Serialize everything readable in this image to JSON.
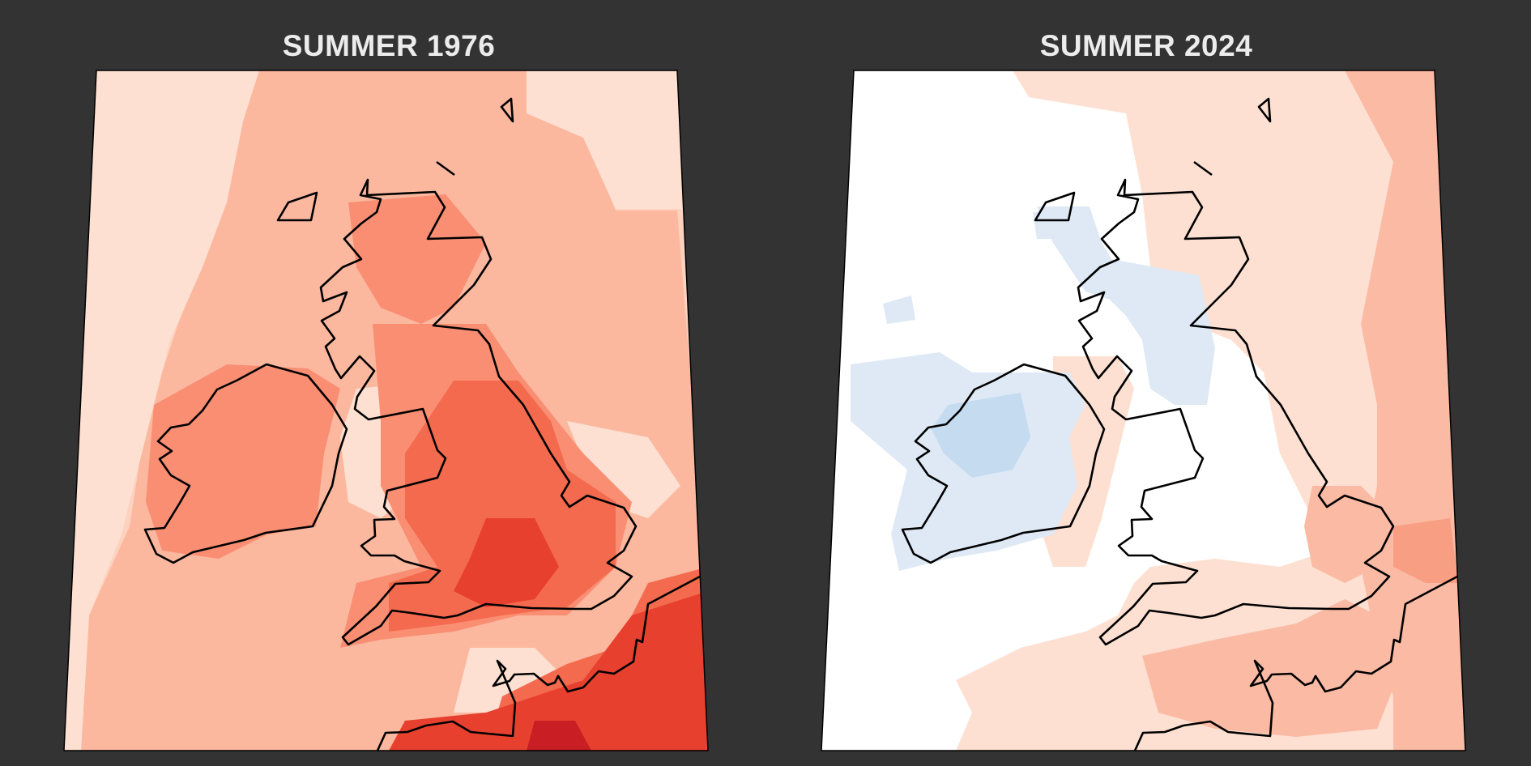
{
  "panels": [
    {
      "title": "SUMMER 1976",
      "colors": {
        "background": "#fcd2bf",
        "band_light": "#fde0d2",
        "sea_warm": "#fbb89f",
        "land_warm": "#f98e73",
        "land_hot": "#f46a4e",
        "hot": "#e8402f",
        "hottest": "#c81e24"
      }
    },
    {
      "title": "SUMMER 2024",
      "colors": {
        "background": "#ffffff",
        "warm_faint": "#fde0d2",
        "warm": "#fbbaa3",
        "warm_strong": "#f89e82",
        "cool_faint": "#dee9f5",
        "cool": "#c5dbef"
      }
    }
  ],
  "frame_color": "#000000",
  "coastline_color": "#000000"
}
